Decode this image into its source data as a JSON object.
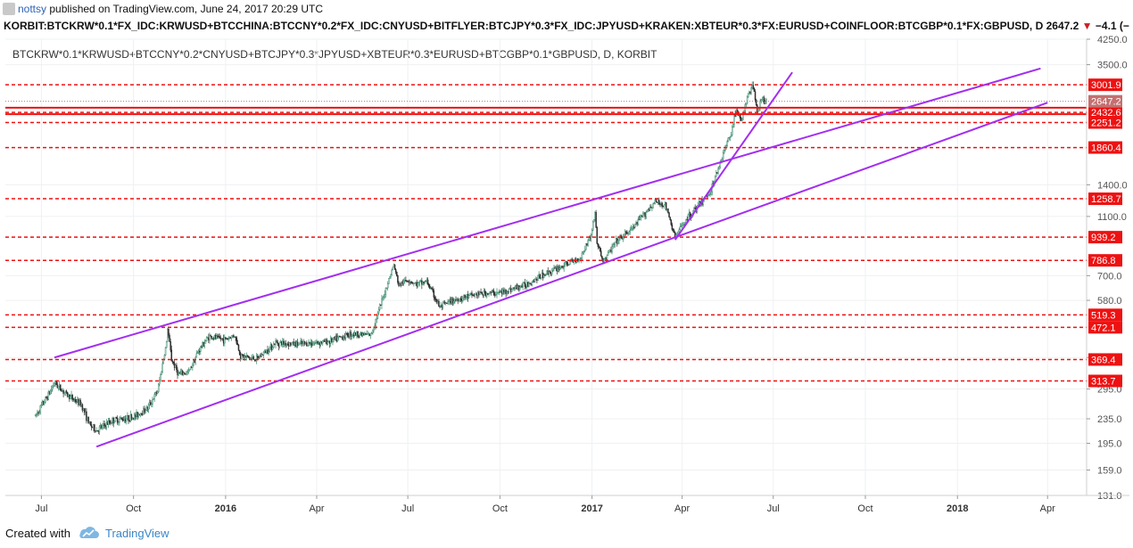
{
  "header": {
    "author": "nottsy",
    "published": "published on TradingView.com, June 24, 2017 20:29 UTC",
    "symbol": "KORBIT:BTCKRW*0.1*FX_IDC:KRWUSD+BTCCHINA:BTCCNY*0.2*FX_IDC:CNYUSD+BITFLYER:BTCJPY*0.3*FX_IDC:JPYUSD+KRAKEN:XBTEUR*0.3*FX:EURUSD+COINFLOOR:BTCGBP*0.1*FX:GBPUSD, D",
    "last_price": "2647.2",
    "change_arrow": "▼",
    "change": "−4.1 (−0.1"
  },
  "footer": {
    "created_with": "Created with",
    "brand": "TradingView",
    "logo_icon": "tradingview-cloud-icon"
  },
  "colors": {
    "bull": "#3a8a6b",
    "bear": "#2e2e2e",
    "channel": "#a32ef0",
    "resistance": "#ee1111",
    "price_tag": "#c47070"
  },
  "chart_data": {
    "type": "candlestick",
    "title": "BTCKRW*0.1*KRWUSD+BTCCNY*0.2*CNYUSD+BTCJPY*0.3*JPYUSD+XBTEUR*0.3*EURUSD+BTCGBP*0.1*GBPUSD, D, KORBIT",
    "y_scale": "log",
    "ylim": [
      131,
      4250
    ],
    "xlim": [
      "2015-05-26",
      "2018-05-10"
    ],
    "y_ticks": [
      "4250.0",
      "3500.0",
      "1400.0",
      "1100.0",
      "700.0",
      "580.0",
      "375.0",
      "295.0",
      "235.0",
      "195.0",
      "159.0",
      "131.0"
    ],
    "y_tick_values": [
      4250,
      3500,
      1400,
      1100,
      700,
      580,
      375,
      295,
      235,
      195,
      159,
      131
    ],
    "x_ticks": [
      {
        "label": "Jul",
        "date": "2015-07-01",
        "bold": false
      },
      {
        "label": "Oct",
        "date": "2015-10-01",
        "bold": false
      },
      {
        "label": "2016",
        "date": "2016-01-01",
        "bold": true
      },
      {
        "label": "Apr",
        "date": "2016-04-01",
        "bold": false
      },
      {
        "label": "Jul",
        "date": "2016-07-01",
        "bold": false
      },
      {
        "label": "Oct",
        "date": "2016-10-01",
        "bold": false
      },
      {
        "label": "2017",
        "date": "2017-01-01",
        "bold": true
      },
      {
        "label": "Apr",
        "date": "2017-04-01",
        "bold": false
      },
      {
        "label": "Jul",
        "date": "2017-07-01",
        "bold": false
      },
      {
        "label": "Oct",
        "date": "2017-10-01",
        "bold": false
      },
      {
        "label": "2018",
        "date": "2018-01-01",
        "bold": true
      },
      {
        "label": "Apr",
        "date": "2018-04-01",
        "bold": false
      }
    ],
    "price_path": [
      [
        "2015-06-25",
        240
      ],
      [
        "2015-07-10",
        290
      ],
      [
        "2015-07-14",
        310
      ],
      [
        "2015-07-25",
        285
      ],
      [
        "2015-08-10",
        262
      ],
      [
        "2015-08-18",
        225
      ],
      [
        "2015-08-25",
        215
      ],
      [
        "2015-09-10",
        232
      ],
      [
        "2015-10-01",
        238
      ],
      [
        "2015-10-15",
        255
      ],
      [
        "2015-10-25",
        290
      ],
      [
        "2015-11-03",
        420
      ],
      [
        "2015-11-04",
        470
      ],
      [
        "2015-11-08",
        370
      ],
      [
        "2015-11-15",
        330
      ],
      [
        "2015-11-25",
        335
      ],
      [
        "2015-12-05",
        395
      ],
      [
        "2015-12-15",
        440
      ],
      [
        "2015-12-31",
        430
      ],
      [
        "2016-01-10",
        445
      ],
      [
        "2016-01-16",
        380
      ],
      [
        "2016-02-01",
        370
      ],
      [
        "2016-02-20",
        420
      ],
      [
        "2016-03-15",
        415
      ],
      [
        "2016-04-15",
        425
      ],
      [
        "2016-05-05",
        450
      ],
      [
        "2016-05-25",
        445
      ],
      [
        "2016-06-05",
        575
      ],
      [
        "2016-06-12",
        680
      ],
      [
        "2016-06-17",
        760
      ],
      [
        "2016-06-22",
        650
      ],
      [
        "2016-07-01",
        680
      ],
      [
        "2016-07-10",
        655
      ],
      [
        "2016-07-20",
        670
      ],
      [
        "2016-08-02",
        550
      ],
      [
        "2016-08-15",
        580
      ],
      [
        "2016-09-10",
        610
      ],
      [
        "2016-10-01",
        615
      ],
      [
        "2016-10-25",
        650
      ],
      [
        "2016-11-15",
        710
      ],
      [
        "2016-12-05",
        760
      ],
      [
        "2016-12-20",
        800
      ],
      [
        "2016-12-31",
        960
      ],
      [
        "2017-01-04",
        1130
      ],
      [
        "2017-01-06",
        900
      ],
      [
        "2017-01-12",
        780
      ],
      [
        "2017-01-25",
        905
      ],
      [
        "2017-02-10",
        1000
      ],
      [
        "2017-02-25",
        1150
      ],
      [
        "2017-03-05",
        1230
      ],
      [
        "2017-03-15",
        1200
      ],
      [
        "2017-03-25",
        940
      ],
      [
        "2017-04-05",
        1080
      ],
      [
        "2017-04-20",
        1220
      ],
      [
        "2017-04-30",
        1350
      ],
      [
        "2017-05-10",
        1700
      ],
      [
        "2017-05-20",
        2100
      ],
      [
        "2017-05-25",
        2500
      ],
      [
        "2017-05-30",
        2250
      ],
      [
        "2017-06-06",
        2800
      ],
      [
        "2017-06-11",
        2950
      ],
      [
        "2017-06-15",
        2500
      ],
      [
        "2017-06-19",
        2650
      ],
      [
        "2017-06-24",
        2647.2
      ]
    ],
    "horizontal_levels": [
      {
        "value": 3001.9,
        "label": "3001.9",
        "style": "dashed"
      },
      {
        "value": 2432.6,
        "label": "2432.6",
        "style": "dashed"
      },
      {
        "value": 2251.2,
        "label": "2251.2",
        "style": "dashed"
      },
      {
        "value": 1860.4,
        "label": "1860.4",
        "style": "dashed"
      },
      {
        "value": 1258.7,
        "label": "1258.7",
        "style": "dashed"
      },
      {
        "value": 939.2,
        "label": "939.2",
        "style": "dashed"
      },
      {
        "value": 786.8,
        "label": "786.8",
        "style": "dashed"
      },
      {
        "value": 519.3,
        "label": "519.3",
        "style": "dashed"
      },
      {
        "value": 472.1,
        "label": "472.1",
        "style": "dashed"
      },
      {
        "value": 369.4,
        "label": "369.4",
        "style": "dashed"
      },
      {
        "value": 313.7,
        "label": "313.7",
        "style": "dashed"
      }
    ],
    "solid_levels": [
      {
        "value": 2520
      },
      {
        "value": 2400
      }
    ],
    "last_price": {
      "value": 2647.2,
      "label": "2647.2"
    },
    "trendlines": [
      {
        "name": "upper-channel",
        "from": [
          "2015-07-14",
          375
        ],
        "to": [
          "2018-03-25",
          3400
        ]
      },
      {
        "name": "lower-channel",
        "from": [
          "2015-08-25",
          190
        ],
        "to": [
          "2018-04-01",
          2620
        ]
      },
      {
        "name": "steep-support",
        "from": [
          "2017-03-25",
          920
        ],
        "to": [
          "2017-07-20",
          3300
        ]
      }
    ]
  }
}
